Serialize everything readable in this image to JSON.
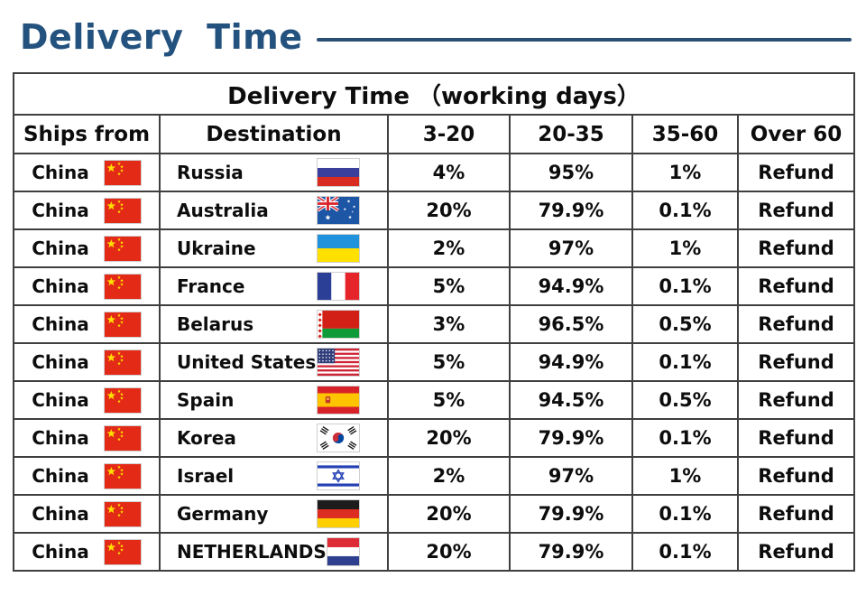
{
  "page": {
    "title": "Delivery Time",
    "accent_color": "#24527e"
  },
  "table": {
    "caption": "Delivery Time （working days）",
    "columns": [
      "Ships from",
      "Destination",
      "3-20",
      "20-35",
      "35-60",
      "Over 60"
    ],
    "rows": [
      {
        "ships_from": "China",
        "ships_flag": "flag-china",
        "destination": "Russia",
        "destination_flag": "flag-russia",
        "pct_3_20": "4%",
        "pct_20_35": "95%",
        "pct_35_60": "1%",
        "over_60": "Refund"
      },
      {
        "ships_from": "China",
        "ships_flag": "flag-china",
        "destination": "Australia",
        "destination_flag": "flag-australia",
        "pct_3_20": "20%",
        "pct_20_35": "79.9%",
        "pct_35_60": "0.1%",
        "over_60": "Refund"
      },
      {
        "ships_from": "China",
        "ships_flag": "flag-china",
        "destination": "Ukraine",
        "destination_flag": "flag-ukraine",
        "pct_3_20": "2%",
        "pct_20_35": "97%",
        "pct_35_60": "1%",
        "over_60": "Refund"
      },
      {
        "ships_from": "China",
        "ships_flag": "flag-china",
        "destination": "France",
        "destination_flag": "flag-france",
        "pct_3_20": "5%",
        "pct_20_35": "94.9%",
        "pct_35_60": "0.1%",
        "over_60": "Refund"
      },
      {
        "ships_from": "China",
        "ships_flag": "flag-china",
        "destination": "Belarus",
        "destination_flag": "flag-belarus",
        "pct_3_20": "3%",
        "pct_20_35": "96.5%",
        "pct_35_60": "0.5%",
        "over_60": "Refund"
      },
      {
        "ships_from": "China",
        "ships_flag": "flag-china",
        "destination": "United States",
        "destination_flag": "flag-united-states",
        "pct_3_20": "5%",
        "pct_20_35": "94.9%",
        "pct_35_60": "0.1%",
        "over_60": "Refund"
      },
      {
        "ships_from": "China",
        "ships_flag": "flag-china",
        "destination": "Spain",
        "destination_flag": "flag-spain",
        "pct_3_20": "5%",
        "pct_20_35": "94.5%",
        "pct_35_60": "0.5%",
        "over_60": "Refund"
      },
      {
        "ships_from": "China",
        "ships_flag": "flag-china",
        "destination": "Korea",
        "destination_flag": "flag-korea",
        "pct_3_20": "20%",
        "pct_20_35": "79.9%",
        "pct_35_60": "0.1%",
        "over_60": "Refund"
      },
      {
        "ships_from": "China",
        "ships_flag": "flag-china",
        "destination": "Israel",
        "destination_flag": "flag-israel",
        "pct_3_20": "2%",
        "pct_20_35": "97%",
        "pct_35_60": "1%",
        "over_60": "Refund"
      },
      {
        "ships_from": "China",
        "ships_flag": "flag-china",
        "destination": "Germany",
        "destination_flag": "flag-germany",
        "pct_3_20": "20%",
        "pct_20_35": "79.9%",
        "pct_35_60": "0.1%",
        "over_60": "Refund"
      },
      {
        "ships_from": "China",
        "ships_flag": "flag-china",
        "destination": "NETHERLANDS",
        "destination_flag": "flag-netherlands",
        "pct_3_20": "20%",
        "pct_20_35": "79.9%",
        "pct_35_60": "0.1%",
        "over_60": "Refund"
      }
    ]
  }
}
